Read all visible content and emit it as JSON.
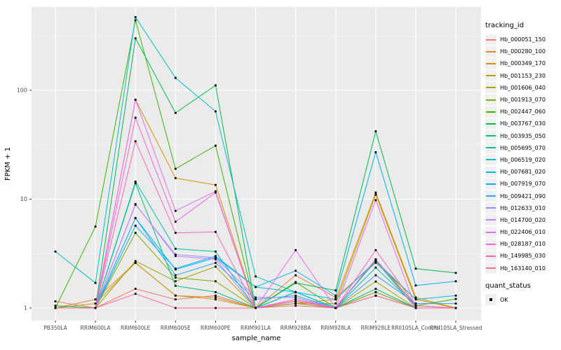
{
  "figure": {
    "background": "#FFFFFF",
    "panel_background": "#EBEBEB",
    "grid_color": "#FFFFFF",
    "tick_label_color": "#4D4D4D",
    "axis_title_color": "#000000",
    "point_color": "#000000"
  },
  "chart_data": {
    "type": "line",
    "title": "",
    "xlabel": "sample_name",
    "ylabel": "FPKM + 1",
    "y_scale": "log10",
    "y_ticks": [
      1,
      10,
      100
    ],
    "y_minor_ticks": [
      3.162,
      31.62,
      316.2
    ],
    "ylim": [
      0.95,
      600
    ],
    "grid": true,
    "legend_position": "right",
    "categories": [
      "PB350LA",
      "RRIM600LA",
      "RRIM600LE",
      "RRIM600SE",
      "RRIM600PE",
      "RRIM901LA",
      "RRIM928BA",
      "RRIM928LA",
      "RRIM928LE",
      "RRII105LA_Control",
      "RRII105LA_Stressed"
    ],
    "legend": {
      "title": "tracking_id"
    },
    "legend2": {
      "title": "quant_status",
      "items": [
        {
          "label": "OK",
          "marker": "black-square"
        }
      ]
    },
    "marker": {
      "shape": "square",
      "color": "#000000",
      "size": 2.8
    },
    "series": [
      {
        "name": "Hb_000051_150",
        "color": "#F8766D",
        "values": [
          1.15,
          1,
          1.5,
          1.2,
          1.3,
          1,
          1.1,
          1,
          1.4,
          1,
          1
        ]
      },
      {
        "name": "Hb_000280_100",
        "color": "#EA8331",
        "values": [
          1,
          1.2,
          2.6,
          1.3,
          1.25,
          1,
          2.0,
          1.25,
          2.6,
          1.2,
          1
        ]
      },
      {
        "name": "Hb_000349_170",
        "color": "#D89000",
        "values": [
          1,
          1,
          82,
          15.6,
          13.5,
          1,
          1.1,
          1.2,
          11.5,
          1.25,
          1
        ]
      },
      {
        "name": "Hb_001153_230",
        "color": "#C09B00",
        "values": [
          1,
          1.1,
          2.6,
          1.3,
          1.2,
          1,
          1.1,
          1.1,
          11,
          1.2,
          1
        ]
      },
      {
        "name": "Hb_001606_040",
        "color": "#A3A500",
        "values": [
          1,
          1,
          2.7,
          1.76,
          2.4,
          1,
          1.16,
          1,
          1.75,
          1,
          1
        ]
      },
      {
        "name": "Hb_001913_070",
        "color": "#7CAE00",
        "values": [
          1,
          1,
          4.9,
          1.9,
          1.76,
          1,
          1.1,
          1,
          1.4,
          1,
          1
        ]
      },
      {
        "name": "Hb_002447_060",
        "color": "#39B600",
        "values": [
          1,
          5.6,
          440,
          19,
          31,
          1,
          1.73,
          1,
          2.8,
          1.05,
          1.21
        ]
      },
      {
        "name": "Hb_003767_030",
        "color": "#00BB4E",
        "values": [
          1.05,
          1,
          300,
          62,
          111,
          1,
          1.7,
          1.45,
          42,
          2.3,
          2.1
        ]
      },
      {
        "name": "Hb_003935_050",
        "color": "#00BF7D",
        "values": [
          1,
          1,
          14,
          1.6,
          1.4,
          1,
          1.4,
          1,
          1.5,
          1,
          1
        ]
      },
      {
        "name": "Hb_005695_070",
        "color": "#00C1A3",
        "values": [
          1,
          1,
          14.5,
          3.5,
          3.3,
          1,
          1.4,
          1,
          2.35,
          1.05,
          1
        ]
      },
      {
        "name": "Hb_006519_020",
        "color": "#00BFC4",
        "values": [
          3.3,
          1.7,
          470,
          130,
          64,
          1.95,
          1.4,
          1,
          2.7,
          1,
          1
        ]
      },
      {
        "name": "Hb_007681_020",
        "color": "#00BAE0",
        "values": [
          1,
          1,
          6.7,
          2.26,
          2.9,
          1.56,
          1.4,
          1.2,
          2.7,
          1.2,
          1.3
        ]
      },
      {
        "name": "Hb_007919_070",
        "color": "#00B0F6",
        "values": [
          1,
          1,
          5.7,
          2.3,
          3.0,
          1.56,
          2.2,
          1.3,
          27,
          1.61,
          1.76
        ]
      },
      {
        "name": "Hb_009421_090",
        "color": "#35A2FF",
        "values": [
          1,
          1,
          6.7,
          2.0,
          2.6,
          1.2,
          1.3,
          1,
          2.0,
          1.1,
          1.1
        ]
      },
      {
        "name": "Hb_012633_010",
        "color": "#9590FF",
        "values": [
          1,
          1,
          8.9,
          3.1,
          2.9,
          1.25,
          1.25,
          1,
          1.3,
          1,
          1
        ]
      },
      {
        "name": "Hb_014700_020",
        "color": "#C77CFF",
        "values": [
          1,
          1,
          9,
          3.0,
          2.8,
          1,
          1.2,
          1,
          1.3,
          1,
          1
        ]
      },
      {
        "name": "Hb_022406_010",
        "color": "#E76BF3",
        "values": [
          1,
          1,
          82,
          7.8,
          11.8,
          1,
          3.4,
          1,
          9.8,
          1,
          1
        ]
      },
      {
        "name": "Hb_028187_010",
        "color": "#FA62DB",
        "values": [
          1,
          1,
          56,
          6.2,
          11.5,
          1,
          1.2,
          1,
          2.8,
          1,
          1
        ]
      },
      {
        "name": "Hb_149985_030",
        "color": "#FF62BC",
        "values": [
          1,
          1,
          34,
          4.9,
          5.0,
          1,
          1.15,
          1,
          3.4,
          1.05,
          1
        ]
      },
      {
        "name": "Hb_163140_010",
        "color": "#FF6A98",
        "values": [
          1,
          1,
          1.35,
          1,
          1,
          1,
          1.05,
          1,
          1.3,
          1,
          1
        ]
      }
    ]
  }
}
